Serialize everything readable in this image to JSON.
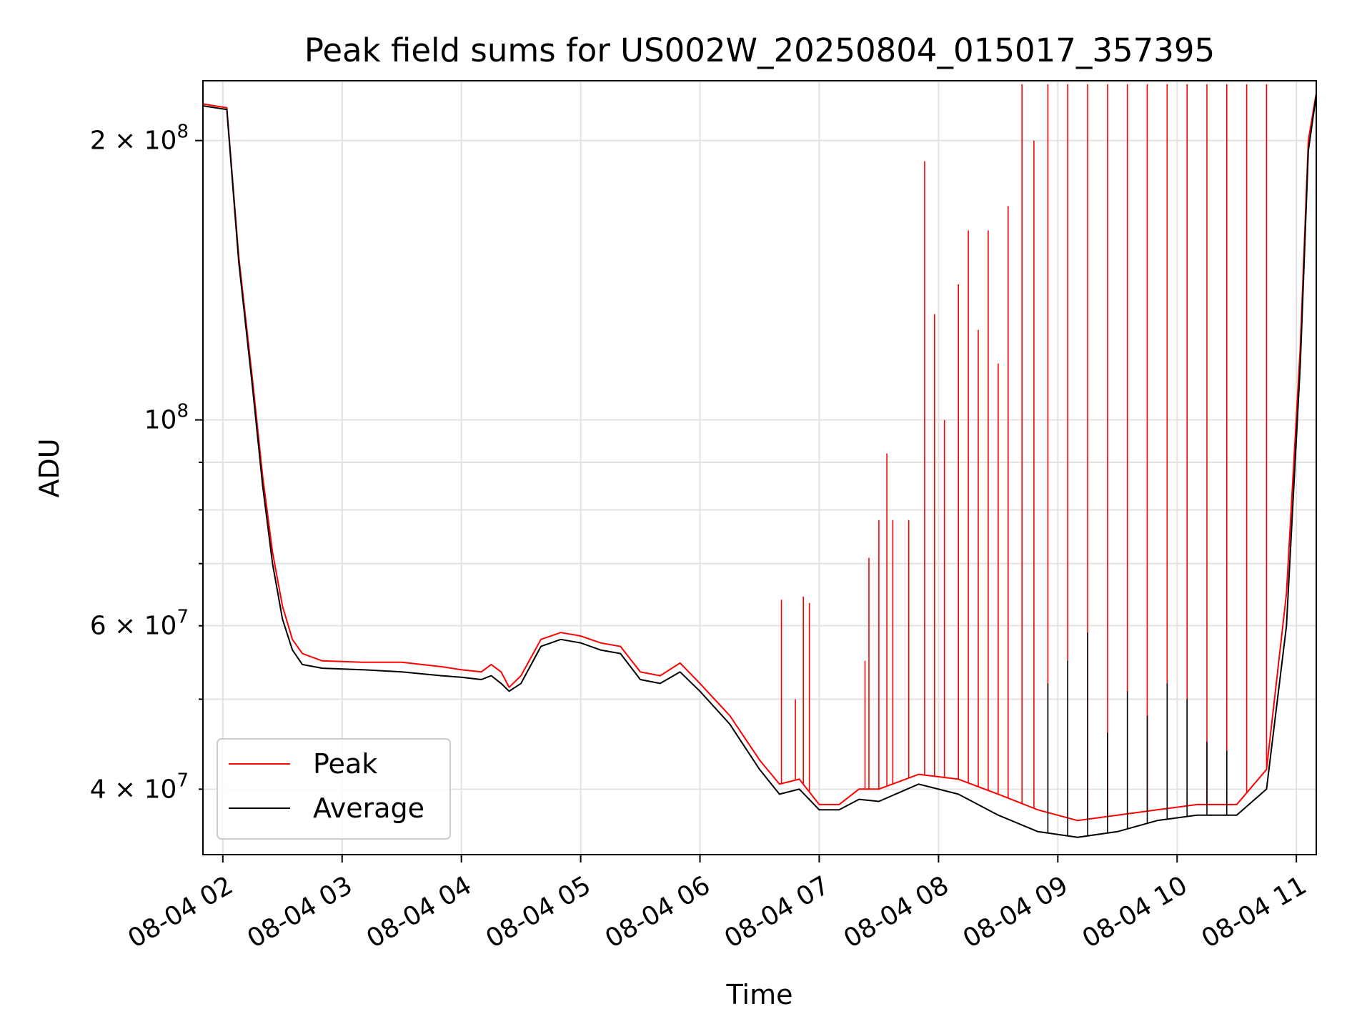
{
  "chart_data": {
    "type": "line",
    "title": "Peak field sums for US002W_20250804_015017_357395",
    "xlabel": "Time",
    "ylabel": "ADU",
    "xscale": "time",
    "yscale": "log",
    "xlim": [
      "2025-08-04 01:50",
      "2025-08-04 11:10"
    ],
    "ylim": [
      34000000,
      232000000
    ],
    "grid": true,
    "legend_position": "lower-left",
    "x_ticks": [
      {
        "value": "2025-08-04 02:00",
        "label": "08-04 02"
      },
      {
        "value": "2025-08-04 03:00",
        "label": "08-04 03"
      },
      {
        "value": "2025-08-04 04:00",
        "label": "08-04 04"
      },
      {
        "value": "2025-08-04 05:00",
        "label": "08-04 05"
      },
      {
        "value": "2025-08-04 06:00",
        "label": "08-04 06"
      },
      {
        "value": "2025-08-04 07:00",
        "label": "08-04 07"
      },
      {
        "value": "2025-08-04 08:00",
        "label": "08-04 08"
      },
      {
        "value": "2025-08-04 09:00",
        "label": "08-04 09"
      },
      {
        "value": "2025-08-04 10:00",
        "label": "08-04 10"
      },
      {
        "value": "2025-08-04 11:00",
        "label": "08-04 11"
      }
    ],
    "y_major_ticks": [
      {
        "value": 100000000,
        "base": "10",
        "exponent": "8"
      },
      {
        "value": 200000000,
        "base": "2 × 10",
        "exponent": "8"
      }
    ],
    "y_minor_ticks": [
      {
        "value": 40000000,
        "base": "4 × 10",
        "exponent": "7"
      },
      {
        "value": 50000000
      },
      {
        "value": 60000000,
        "base": "6 × 10",
        "exponent": "7"
      },
      {
        "value": 70000000
      },
      {
        "value": 80000000
      },
      {
        "value": 90000000
      }
    ],
    "series": [
      {
        "name": "Peak",
        "color": "#ff0000",
        "points": [
          [
            "2025-08-04 01:50",
            219000000
          ],
          [
            "2025-08-04 02:02",
            217000000
          ],
          [
            "2025-08-04 02:08",
            150000000
          ],
          [
            "2025-08-04 02:15",
            110000000
          ],
          [
            "2025-08-04 02:20",
            87000000
          ],
          [
            "2025-08-04 02:25",
            72000000
          ],
          [
            "2025-08-04 02:30",
            63000000
          ],
          [
            "2025-08-04 02:35",
            58000000
          ],
          [
            "2025-08-04 02:40",
            56000000
          ],
          [
            "2025-08-04 02:50",
            55000000
          ],
          [
            "2025-08-04 03:10",
            54800000
          ],
          [
            "2025-08-04 03:30",
            54800000
          ],
          [
            "2025-08-04 03:50",
            54200000
          ],
          [
            "2025-08-04 04:00",
            53800000
          ],
          [
            "2025-08-04 04:10",
            53500000
          ],
          [
            "2025-08-04 04:15",
            54500000
          ],
          [
            "2025-08-04 04:20",
            53500000
          ],
          [
            "2025-08-04 04:24",
            51500000
          ],
          [
            "2025-08-04 04:30",
            53000000
          ],
          [
            "2025-08-04 04:40",
            58000000
          ],
          [
            "2025-08-04 04:50",
            59000000
          ],
          [
            "2025-08-04 05:00",
            58500000
          ],
          [
            "2025-08-04 05:10",
            57500000
          ],
          [
            "2025-08-04 05:20",
            57000000
          ],
          [
            "2025-08-04 05:30",
            53500000
          ],
          [
            "2025-08-04 05:40",
            53000000
          ],
          [
            "2025-08-04 05:50",
            54700000
          ],
          [
            "2025-08-04 06:00",
            52000000
          ],
          [
            "2025-08-04 06:15",
            48000000
          ],
          [
            "2025-08-04 06:30",
            43000000
          ],
          [
            "2025-08-04 06:40",
            40500000
          ],
          [
            "2025-08-04 06:50",
            41000000
          ],
          [
            "2025-08-04 07:00",
            38500000
          ],
          [
            "2025-08-04 07:10",
            38500000
          ],
          [
            "2025-08-04 07:20",
            40000000
          ],
          [
            "2025-08-04 07:30",
            40000000
          ],
          [
            "2025-08-04 07:50",
            41500000
          ],
          [
            "2025-08-04 08:10",
            41000000
          ],
          [
            "2025-08-04 08:30",
            39500000
          ],
          [
            "2025-08-04 08:50",
            38000000
          ],
          [
            "2025-08-04 09:10",
            37000000
          ],
          [
            "2025-08-04 09:30",
            37500000
          ],
          [
            "2025-08-04 09:50",
            38000000
          ],
          [
            "2025-08-04 10:10",
            38500000
          ],
          [
            "2025-08-04 10:30",
            38500000
          ],
          [
            "2025-08-04 10:45",
            42000000
          ],
          [
            "2025-08-04 10:55",
            65000000
          ],
          [
            "2025-08-04 11:02",
            120000000
          ],
          [
            "2025-08-04 11:06",
            200000000
          ],
          [
            "2025-08-04 11:10",
            225000000
          ]
        ],
        "spikes": [
          [
            "2025-08-04 06:41",
            64000000
          ],
          [
            "2025-08-04 06:48",
            50000000
          ],
          [
            "2025-08-04 06:52",
            64500000
          ],
          [
            "2025-08-04 06:55",
            63500000
          ],
          [
            "2025-08-04 07:23",
            55000000
          ],
          [
            "2025-08-04 07:25",
            71000000
          ],
          [
            "2025-08-04 07:30",
            78000000
          ],
          [
            "2025-08-04 07:34",
            92000000
          ],
          [
            "2025-08-04 07:37",
            78000000
          ],
          [
            "2025-08-04 07:45",
            78000000
          ],
          [
            "2025-08-04 07:53",
            190000000
          ],
          [
            "2025-08-04 07:58",
            130000000
          ],
          [
            "2025-08-04 08:03",
            100000000
          ],
          [
            "2025-08-04 08:10",
            140000000
          ],
          [
            "2025-08-04 08:15",
            160000000
          ],
          [
            "2025-08-04 08:20",
            125000000
          ],
          [
            "2025-08-04 08:25",
            160000000
          ],
          [
            "2025-08-04 08:30",
            115000000
          ],
          [
            "2025-08-04 08:35",
            170000000
          ],
          [
            "2025-08-04 08:42",
            230000000
          ],
          [
            "2025-08-04 08:48",
            200000000
          ],
          [
            "2025-08-04 08:55",
            230000000
          ],
          [
            "2025-08-04 09:05",
            230000000
          ],
          [
            "2025-08-04 09:15",
            230000000
          ],
          [
            "2025-08-04 09:25",
            230000000
          ],
          [
            "2025-08-04 09:35",
            230000000
          ],
          [
            "2025-08-04 09:45",
            230000000
          ],
          [
            "2025-08-04 09:55",
            230000000
          ],
          [
            "2025-08-04 10:05",
            230000000
          ],
          [
            "2025-08-04 10:15",
            230000000
          ],
          [
            "2025-08-04 10:25",
            230000000
          ],
          [
            "2025-08-04 10:35",
            230000000
          ],
          [
            "2025-08-04 10:45",
            230000000
          ]
        ]
      },
      {
        "name": "Average",
        "color": "#000000",
        "points": [
          [
            "2025-08-04 01:50",
            218000000
          ],
          [
            "2025-08-04 02:02",
            216000000
          ],
          [
            "2025-08-04 02:08",
            148000000
          ],
          [
            "2025-08-04 02:15",
            108000000
          ],
          [
            "2025-08-04 02:20",
            85000000
          ],
          [
            "2025-08-04 02:25",
            70000000
          ],
          [
            "2025-08-04 02:30",
            61000000
          ],
          [
            "2025-08-04 02:35",
            56500000
          ],
          [
            "2025-08-04 02:40",
            54500000
          ],
          [
            "2025-08-04 02:50",
            54000000
          ],
          [
            "2025-08-04 03:10",
            53800000
          ],
          [
            "2025-08-04 03:30",
            53500000
          ],
          [
            "2025-08-04 03:50",
            53000000
          ],
          [
            "2025-08-04 04:00",
            52800000
          ],
          [
            "2025-08-04 04:10",
            52500000
          ],
          [
            "2025-08-04 04:15",
            53000000
          ],
          [
            "2025-08-04 04:20",
            52000000
          ],
          [
            "2025-08-04 04:24",
            51000000
          ],
          [
            "2025-08-04 04:30",
            52000000
          ],
          [
            "2025-08-04 04:40",
            57000000
          ],
          [
            "2025-08-04 04:50",
            58000000
          ],
          [
            "2025-08-04 05:00",
            57500000
          ],
          [
            "2025-08-04 05:10",
            56500000
          ],
          [
            "2025-08-04 05:20",
            56000000
          ],
          [
            "2025-08-04 05:30",
            52500000
          ],
          [
            "2025-08-04 05:40",
            52000000
          ],
          [
            "2025-08-04 05:50",
            53500000
          ],
          [
            "2025-08-04 06:00",
            51000000
          ],
          [
            "2025-08-04 06:15",
            47000000
          ],
          [
            "2025-08-04 06:30",
            42000000
          ],
          [
            "2025-08-04 06:40",
            39500000
          ],
          [
            "2025-08-04 06:50",
            40000000
          ],
          [
            "2025-08-04 07:00",
            38000000
          ],
          [
            "2025-08-04 07:10",
            38000000
          ],
          [
            "2025-08-04 07:20",
            39000000
          ],
          [
            "2025-08-04 07:30",
            38800000
          ],
          [
            "2025-08-04 07:50",
            40500000
          ],
          [
            "2025-08-04 08:10",
            39500000
          ],
          [
            "2025-08-04 08:30",
            37500000
          ],
          [
            "2025-08-04 08:50",
            36000000
          ],
          [
            "2025-08-04 09:10",
            35500000
          ],
          [
            "2025-08-04 09:30",
            36000000
          ],
          [
            "2025-08-04 09:50",
            37000000
          ],
          [
            "2025-08-04 10:10",
            37500000
          ],
          [
            "2025-08-04 10:30",
            37500000
          ],
          [
            "2025-08-04 10:45",
            40000000
          ],
          [
            "2025-08-04 10:55",
            60000000
          ],
          [
            "2025-08-04 11:02",
            115000000
          ],
          [
            "2025-08-04 11:06",
            195000000
          ],
          [
            "2025-08-04 11:10",
            224000000
          ]
        ],
        "spikes": [
          [
            "2025-08-04 08:55",
            52000000
          ],
          [
            "2025-08-04 09:05",
            55000000
          ],
          [
            "2025-08-04 09:15",
            59000000
          ],
          [
            "2025-08-04 09:25",
            46000000
          ],
          [
            "2025-08-04 09:35",
            51000000
          ],
          [
            "2025-08-04 09:45",
            48000000
          ],
          [
            "2025-08-04 09:55",
            52000000
          ],
          [
            "2025-08-04 10:05",
            50000000
          ],
          [
            "2025-08-04 10:15",
            45000000
          ],
          [
            "2025-08-04 10:25",
            44000000
          ]
        ]
      }
    ]
  }
}
